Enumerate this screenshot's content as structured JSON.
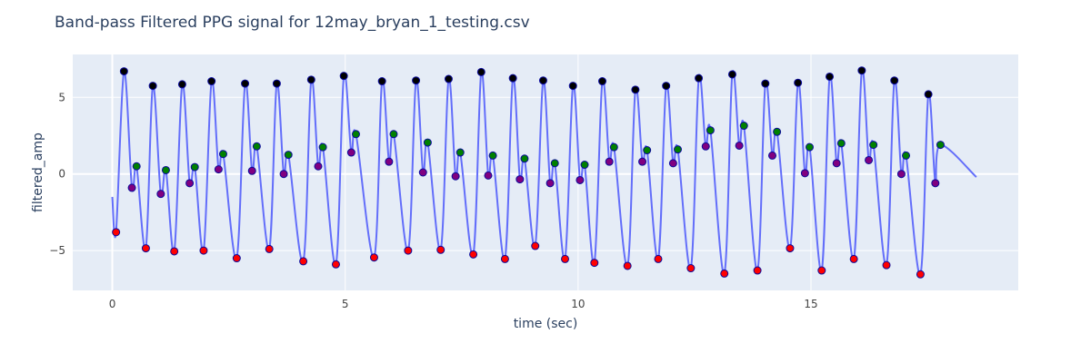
{
  "chart_data": {
    "type": "scatter",
    "title": "Band-pass Filtered PPG signal for 12may_bryan_1_testing.csv",
    "xlabel": "time (sec)",
    "ylabel": "filtered_amp",
    "xlim": [
      -0.85,
      19.45
    ],
    "ylim": [
      -7.6,
      7.8
    ],
    "x_ticks": [
      0,
      5,
      10,
      15
    ],
    "y_ticks": [
      -5,
      0,
      5
    ],
    "grid": true,
    "legend": "none",
    "colors": {
      "plot_bg": "#e5ecf6",
      "grid": "#ffffff",
      "line": "#636efa",
      "systolic_peak": "#000000",
      "dicrotic_peak": "#008000",
      "dicrotic_notch": "#800080",
      "trough": "#ff0000",
      "marker_outline": "#0a0a9a"
    },
    "start_point": {
      "x": 0.0,
      "y": -1.5
    },
    "end_point": {
      "x": 18.55,
      "y": -0.2
    },
    "beats": [
      {
        "trough": [
          0.08,
          -3.8
        ],
        "peak": [
          0.25,
          6.7
        ],
        "notch": [
          0.42,
          -0.9
        ],
        "dpeak": [
          0.52,
          0.5
        ]
      },
      {
        "trough": [
          0.72,
          -4.85
        ],
        "peak": [
          0.87,
          5.75
        ],
        "notch": [
          1.04,
          -1.3
        ],
        "dpeak": [
          1.15,
          0.25
        ]
      },
      {
        "trough": [
          1.33,
          -5.05
        ],
        "peak": [
          1.5,
          5.85
        ],
        "notch": [
          1.66,
          -0.6
        ],
        "dpeak": [
          1.77,
          0.45
        ]
      },
      {
        "trough": [
          1.96,
          -5.0
        ],
        "peak": [
          2.13,
          6.05
        ],
        "notch": [
          2.28,
          0.3
        ],
        "dpeak": [
          2.38,
          1.3
        ]
      },
      {
        "trough": [
          2.67,
          -5.5
        ],
        "peak": [
          2.85,
          5.9
        ],
        "notch": [
          3.0,
          0.2
        ],
        "dpeak": [
          3.1,
          1.8
        ]
      },
      {
        "trough": [
          3.37,
          -4.9
        ],
        "peak": [
          3.53,
          5.9
        ],
        "notch": [
          3.68,
          0.0
        ],
        "dpeak": [
          3.78,
          1.25
        ]
      },
      {
        "trough": [
          4.1,
          -5.7
        ],
        "peak": [
          4.27,
          6.15
        ],
        "notch": [
          4.42,
          0.5
        ],
        "dpeak": [
          4.52,
          1.75
        ]
      },
      {
        "trough": [
          4.8,
          -5.9
        ],
        "peak": [
          4.97,
          6.4
        ],
        "notch": [
          5.13,
          1.4
        ],
        "dpeak": [
          5.23,
          2.6
        ]
      },
      {
        "trough": [
          5.62,
          -5.45
        ],
        "peak": [
          5.79,
          6.05
        ],
        "notch": [
          5.94,
          0.8
        ],
        "dpeak": [
          6.04,
          2.6
        ]
      },
      {
        "trough": [
          6.35,
          -5.0
        ],
        "peak": [
          6.52,
          6.1
        ],
        "notch": [
          6.67,
          0.1
        ],
        "dpeak": [
          6.77,
          2.05
        ]
      },
      {
        "trough": [
          7.05,
          -4.95
        ],
        "peak": [
          7.22,
          6.2
        ],
        "notch": [
          7.37,
          -0.15
        ],
        "dpeak": [
          7.47,
          1.4
        ]
      },
      {
        "trough": [
          7.75,
          -5.25
        ],
        "peak": [
          7.92,
          6.65
        ],
        "notch": [
          8.07,
          -0.1
        ],
        "dpeak": [
          8.17,
          1.2
        ]
      },
      {
        "trough": [
          8.43,
          -5.55
        ],
        "peak": [
          8.6,
          6.25
        ],
        "notch": [
          8.75,
          -0.35
        ],
        "dpeak": [
          8.85,
          1.0
        ]
      },
      {
        "trough": [
          9.08,
          -4.7
        ],
        "peak": [
          9.25,
          6.1
        ],
        "notch": [
          9.4,
          -0.6
        ],
        "dpeak": [
          9.5,
          0.7
        ]
      },
      {
        "trough": [
          9.72,
          -5.55
        ],
        "peak": [
          9.89,
          5.75
        ],
        "notch": [
          10.04,
          -0.4
        ],
        "dpeak": [
          10.14,
          0.6
        ]
      },
      {
        "trough": [
          10.35,
          -5.8
        ],
        "peak": [
          10.52,
          6.05
        ],
        "notch": [
          10.67,
          0.8
        ],
        "dpeak": [
          10.77,
          1.75
        ]
      },
      {
        "trough": [
          11.06,
          -6.0
        ],
        "peak": [
          11.23,
          5.5
        ],
        "notch": [
          11.38,
          0.8
        ],
        "dpeak": [
          11.48,
          1.55
        ]
      },
      {
        "trough": [
          11.72,
          -5.55
        ],
        "peak": [
          11.89,
          5.75
        ],
        "notch": [
          12.04,
          0.7
        ],
        "dpeak": [
          12.14,
          1.6
        ]
      },
      {
        "trough": [
          12.42,
          -6.15
        ],
        "peak": [
          12.59,
          6.25
        ],
        "notch": [
          12.74,
          1.8
        ],
        "dpeak": [
          12.84,
          2.85
        ]
      },
      {
        "trough": [
          13.14,
          -6.5
        ],
        "peak": [
          13.31,
          6.5
        ],
        "notch": [
          13.46,
          1.85
        ],
        "dpeak": [
          13.56,
          3.15
        ]
      },
      {
        "trough": [
          13.85,
          -6.3
        ],
        "peak": [
          14.02,
          5.9
        ],
        "notch": [
          14.17,
          1.2
        ],
        "dpeak": [
          14.27,
          2.75
        ]
      },
      {
        "trough": [
          14.55,
          -4.85
        ],
        "peak": [
          14.72,
          5.95
        ],
        "notch": [
          14.87,
          0.05
        ],
        "dpeak": [
          14.97,
          1.75
        ]
      },
      {
        "trough": [
          15.23,
          -6.3
        ],
        "peak": [
          15.4,
          6.35
        ],
        "notch": [
          15.55,
          0.7
        ],
        "dpeak": [
          15.65,
          2.0
        ]
      },
      {
        "trough": [
          15.92,
          -5.55
        ],
        "peak": [
          16.09,
          6.75
        ],
        "notch": [
          16.24,
          0.9
        ],
        "dpeak": [
          16.34,
          1.9
        ]
      },
      {
        "trough": [
          16.62,
          -5.95
        ],
        "peak": [
          16.79,
          6.1
        ],
        "notch": [
          16.94,
          0.0
        ],
        "dpeak": [
          17.04,
          1.2
        ]
      },
      {
        "trough": [
          17.35,
          -6.55
        ],
        "peak": [
          17.52,
          5.2
        ],
        "notch": [
          17.67,
          -0.6
        ],
        "dpeak": [
          17.78,
          1.9
        ]
      }
    ]
  }
}
